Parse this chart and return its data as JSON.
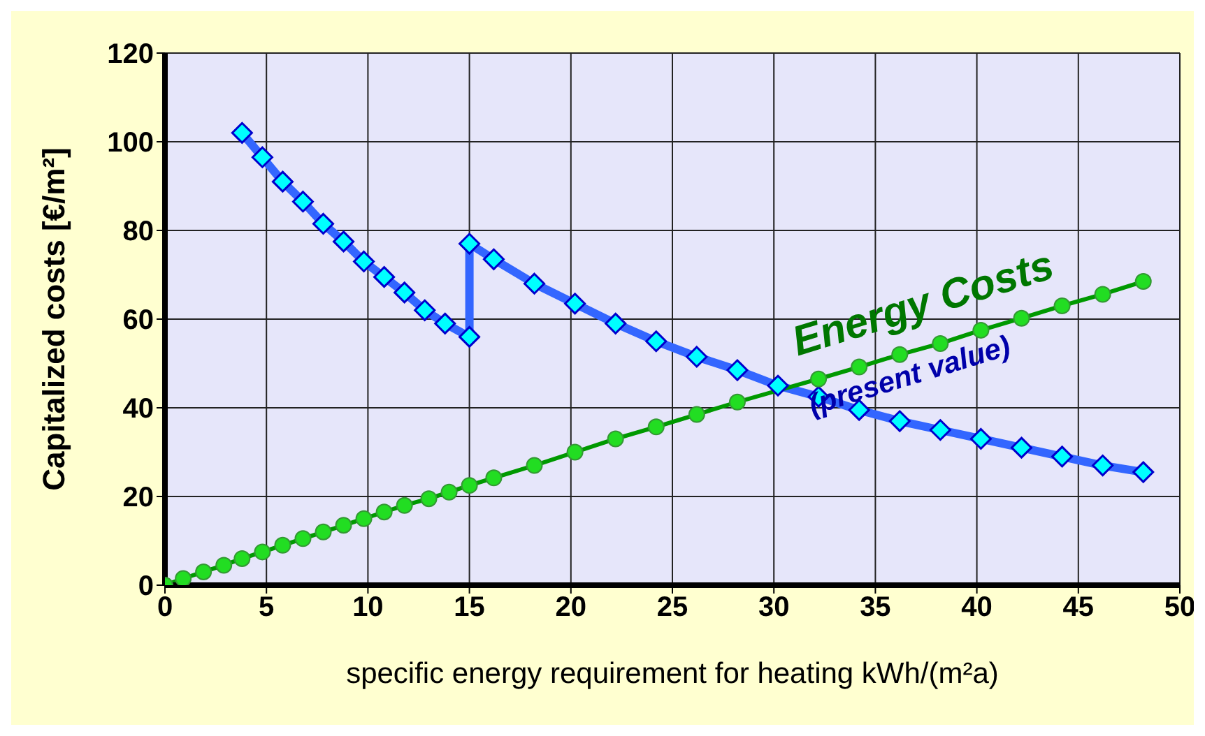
{
  "chart_data": {
    "type": "line",
    "xlabel": "specific energy requirement for heating kWh/(m²a)",
    "ylabel": "Capitalized costs  [€/m²]",
    "xlim": [
      0,
      50
    ],
    "xticks": [
      0,
      5,
      10,
      15,
      20,
      25,
      30,
      35,
      40,
      45,
      50
    ],
    "ylim": [
      0,
      120
    ],
    "yticks": [
      0,
      20,
      40,
      60,
      80,
      100,
      120
    ],
    "grid": true,
    "line_style": "solid",
    "series": [
      {
        "color": "#3366ff",
        "marker": "diamond",
        "x": [
          3.8,
          4.8,
          5.8,
          6.8,
          7.8,
          8.8,
          9.8,
          10.8,
          11.8,
          12.8,
          13.8,
          15,
          15,
          16.2,
          18.2,
          20.2,
          22.2,
          24.2,
          26.2,
          28.2,
          30.2,
          32.2,
          34.2,
          36.2,
          38.2,
          40.2,
          42.2,
          44.2,
          46.2,
          48.2
        ],
        "values": [
          102,
          96.5,
          91,
          86.5,
          81.5,
          77.5,
          73,
          69.5,
          66,
          62,
          59,
          56,
          77,
          73.5,
          68,
          63.5,
          59,
          55,
          51.5,
          48.5,
          45,
          42.5,
          39.5,
          37,
          35,
          33,
          31,
          29,
          27,
          25.5
        ]
      },
      {
        "color": "#009900",
        "marker": "circle",
        "x": [
          0,
          0.9,
          1.9,
          2.9,
          3.8,
          4.8,
          5.8,
          6.8,
          7.8,
          8.8,
          9.8,
          10.8,
          11.8,
          13,
          14,
          15,
          16.2,
          18.2,
          20.2,
          22.2,
          24.2,
          26.2,
          28.2,
          30.2,
          32.2,
          34.2,
          36.2,
          38.2,
          40.2,
          42.2,
          44.2,
          46.2,
          48.2
        ],
        "values": [
          0,
          1.5,
          3,
          4.5,
          6,
          7.5,
          9,
          10.5,
          12,
          13.5,
          15,
          16.5,
          18,
          19.5,
          21,
          22.5,
          24.2,
          27,
          30,
          33,
          35.7,
          38.5,
          41.3,
          null,
          46.5,
          49.2,
          52,
          54.5,
          57.5,
          60.2,
          63,
          65.6,
          68.5
        ]
      }
    ],
    "annotations": [
      "Energy Costs",
      "(present value)"
    ]
  }
}
